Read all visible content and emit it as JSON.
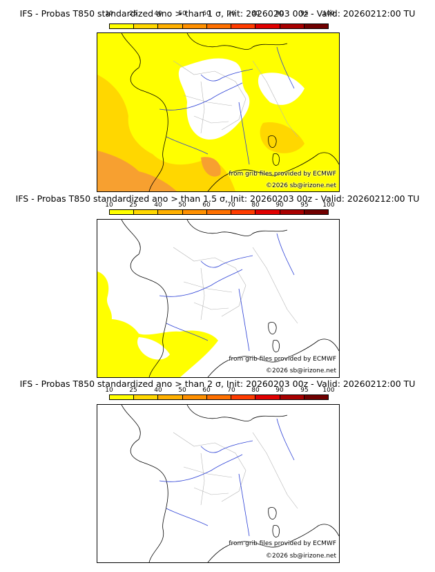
{
  "colorbar": {
    "ticks": [
      "10",
      "25",
      "40",
      "50",
      "60",
      "70",
      "80",
      "90",
      "95",
      "100"
    ],
    "colors": [
      "#ffff00",
      "#ffd700",
      "#ffb000",
      "#ff9000",
      "#ff7000",
      "#ff3c00",
      "#e00000",
      "#a80000",
      "#700000"
    ]
  },
  "panels": [
    {
      "title": "IFS - Probas T850  standardized ano > than 1 σ, Init: 20260203 00z - Valid: 20260212:00 TU"
    },
    {
      "title": "IFS - Probas T850  standardized ano > than 1.5 σ, Init: 20260203 00z - Valid: 20260212:00 TU"
    },
    {
      "title": "IFS - Probas T850  standardized ano > than 2 σ, Init: 20260203 00z - Valid: 20260212:00 TU"
    }
  ],
  "credits": {
    "source": "from grib files provided by ECMWF",
    "copyright": "©2026 sb@irizone.net"
  },
  "colors": {
    "land_border": "#000000",
    "admin_border": "#b4b4b4",
    "river": "#2a3fd6",
    "prob_10": "#ffff00",
    "prob_25": "#ffd700",
    "prob_40": "#f7a030"
  }
}
